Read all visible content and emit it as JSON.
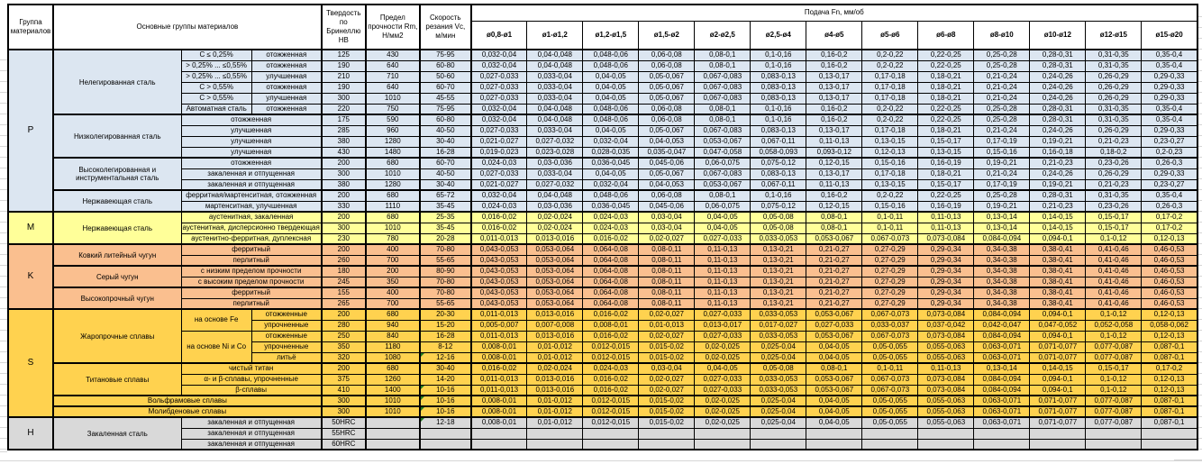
{
  "header": {
    "group_col": "Группа материалов",
    "main_col": "Основные группы материалов",
    "hb_col": "Твердость по Бринеллю HB",
    "rm_col": "Предел прочности Rm, Н/мм2",
    "vc_col": "Скорость резания Vc, м/мин",
    "feed_col": "Подача Fn, мм/об",
    "feed_sizes": [
      "ø0,8-ø1",
      "ø1-ø1,2",
      "ø1,2-ø1,5",
      "ø1,5-ø2",
      "ø2-ø2,5",
      "ø2,5-ø4",
      "ø4-ø5",
      "ø5-ø6",
      "ø6-ø8",
      "ø8-ø10",
      "ø10-ø12",
      "ø12-ø15",
      "ø15-ø20"
    ]
  },
  "flag_color": "#217a21",
  "groups": [
    {
      "label": "P",
      "rows": 15,
      "color": "#dce6f1"
    },
    {
      "label": "M",
      "rows": 3,
      "color": "#ffff99"
    },
    {
      "label": "K",
      "rows": 6,
      "color": "#fabf8f"
    },
    {
      "label": "S",
      "rows": 10,
      "color": "#ffd24f"
    },
    {
      "label": "H",
      "rows": 3,
      "color": "#d9d9d9"
    }
  ],
  "feed_patterns": {
    "A": [
      "0,032-0,04",
      "0,04-0,048",
      "0,048-0,06",
      "0,06-0,08",
      "0,08-0,1",
      "0,1-0,16",
      "0,16-0,2",
      "0,2-0,22",
      "0,22-0,25",
      "0,25-0,28",
      "0,28-0,31",
      "0,31-0,35",
      "0,35-0,4"
    ],
    "B": [
      "0,027-0,033",
      "0,033-0,04",
      "0,04-0,05",
      "0,05-0,067",
      "0,067-0,083",
      "0,083-0,13",
      "0,13-0,17",
      "0,17-0,18",
      "0,18-0,21",
      "0,21-0,24",
      "0,24-0,26",
      "0,26-0,29",
      "0,29-0,33"
    ],
    "C": [
      "0,021-0,027",
      "0,027-0,032",
      "0,032-0,04",
      "0,04-0,053",
      "0,053-0,067",
      "0,067-0,11",
      "0,11-0,13",
      "0,13-0,15",
      "0,15-0,17",
      "0,17-0,19",
      "0,19-0,21",
      "0,21-0,23",
      "0,23-0,27"
    ],
    "D": [
      "0,019-0,023",
      "0,023-0,028",
      "0,028-0,035",
      "0,035-0,047",
      "0,047-0,058",
      "0,058-0,093",
      "0,093-0,12",
      "0,12-0,13",
      "0,13-0,15",
      "0,15-0,16",
      "0,16-0,18",
      "0,18-0,2",
      "0,2-0,23"
    ],
    "E": [
      "0,024-0,03",
      "0,03-0,036",
      "0,036-0,045",
      "0,045-0,06",
      "0,06-0,075",
      "0,075-0,12",
      "0,12-0,15",
      "0,15-0,16",
      "0,16-0,19",
      "0,19-0,21",
      "0,21-0,23",
      "0,23-0,26",
      "0,26-0,3"
    ],
    "F": [
      "0,016-0,02",
      "0,02-0,024",
      "0,024-0,03",
      "0,03-0,04",
      "0,04-0,05",
      "0,05-0,08",
      "0,08-0,1",
      "0,1-0,11",
      "0,11-0,13",
      "0,13-0,14",
      "0,14-0,15",
      "0,15-0,17",
      "0,17-0,2"
    ],
    "G": [
      "0,011-0,013",
      "0,013-0,016",
      "0,016-0,02",
      "0,02-0,027",
      "0,027-0,033",
      "0,033-0,053",
      "0,053-0,067",
      "0,067-0,073",
      "0,073-0,084",
      "0,084-0,094",
      "0,094-0,1",
      "0,1-0,12",
      "0,12-0,13"
    ],
    "H": [
      "0,043-0,053",
      "0,053-0,064",
      "0,064-0,08",
      "0,08-0,11",
      "0,11-0,13",
      "0,13-0,21",
      "0,21-0,27",
      "0,27-0,29",
      "0,29-0,34",
      "0,34-0,38",
      "0,38-0,41",
      "0,41-0,46",
      "0,46-0,53"
    ],
    "I": [
      "0,005-0,007",
      "0,007-0,008",
      "0,008-0,01",
      "0,01-0,013",
      "0,013-0,017",
      "0,017-0,027",
      "0,027-0,033",
      "0,033-0,037",
      "0,037-0,042",
      "0,042-0,047",
      "0,047-0,052",
      "0,052-0,058",
      "0,058-0,062"
    ],
    "J": [
      "0,008-0,01",
      "0,01-0,012",
      "0,012-0,015",
      "0,015-0,02",
      "0,02-0,025",
      "0,025-0,04",
      "0,04-0,05",
      "0,05-0,055",
      "0,055-0,063",
      "0,063-0,071",
      "0,071-0,077",
      "0,077-0,087",
      "0,087-0,1"
    ]
  },
  "rows": [
    {
      "g": 0,
      "m": [
        [
          "Нелегированная сталь",
          6,
          1,
          1
        ],
        [
          "C ≤ 0,25%",
          1,
          1,
          0
        ],
        [
          "отожженная",
          1,
          1,
          0
        ]
      ],
      "hb": "125",
      "rm": "430",
      "vc": "75-95",
      "f": "A"
    },
    {
      "m": [
        [
          "> 0,25% ... ≤0,55%",
          1,
          1,
          0
        ],
        [
          "отожженная",
          1,
          1,
          0
        ]
      ],
      "hb": "190",
      "rm": "640",
      "vc": "60-80",
      "f": "A"
    },
    {
      "m": [
        [
          "> 0,25% ... ≤0,55%",
          1,
          1,
          0
        ],
        [
          "улучшенная",
          1,
          1,
          0
        ]
      ],
      "hb": "210",
      "rm": "710",
      "vc": "50-60",
      "f": "B"
    },
    {
      "m": [
        [
          "C > 0,55%",
          1,
          1,
          0
        ],
        [
          "отожженная",
          1,
          1,
          0
        ]
      ],
      "hb": "190",
      "rm": "640",
      "vc": "60-70",
      "f": "B"
    },
    {
      "m": [
        [
          "C > 0,55%",
          1,
          1,
          0
        ],
        [
          "улучшенная",
          1,
          1,
          0
        ]
      ],
      "hb": "300",
      "rm": "1010",
      "vc": "45-55",
      "f": "B"
    },
    {
      "m": [
        [
          "Автоматная сталь",
          1,
          1,
          0
        ],
        [
          "отожженная",
          1,
          1,
          0
        ]
      ],
      "hb": "220",
      "rm": "750",
      "vc": "75-95",
      "f": "A",
      "sb": 1
    },
    {
      "m": [
        [
          "Низколегированная сталь",
          4,
          1,
          1
        ],
        [
          "отожженная",
          1,
          2,
          0
        ]
      ],
      "hb": "175",
      "rm": "590",
      "vc": "60-80",
      "f": "A"
    },
    {
      "m": [
        [
          "улучшенная",
          1,
          2,
          0
        ]
      ],
      "hb": "285",
      "rm": "960",
      "vc": "40-50",
      "f": "B"
    },
    {
      "m": [
        [
          "улучшенная",
          1,
          2,
          0
        ]
      ],
      "hb": "380",
      "rm": "1280",
      "vc": "30-40",
      "f": "C"
    },
    {
      "m": [
        [
          "улучшенная",
          1,
          2,
          0
        ]
      ],
      "hb": "430",
      "rm": "1480",
      "vc": "16-28",
      "f": "D",
      "sb": 1
    },
    {
      "m": [
        [
          "Высоколегированная и инструментальная сталь",
          3,
          1,
          1
        ],
        [
          "отожженная",
          1,
          2,
          0
        ]
      ],
      "hb": "200",
      "rm": "680",
      "vc": "60-70",
      "f": "E"
    },
    {
      "m": [
        [
          "закаленная и отпущенная",
          1,
          2,
          0
        ]
      ],
      "hb": "300",
      "rm": "1010",
      "vc": "40-50",
      "f": "B"
    },
    {
      "m": [
        [
          "закаленная и отпущенная",
          1,
          2,
          0
        ]
      ],
      "hb": "380",
      "rm": "1280",
      "vc": "30-40",
      "f": "C",
      "sb": 1
    },
    {
      "m": [
        [
          "Нержавеющая сталь",
          2,
          1,
          1
        ],
        [
          "ферритная/мартенситная, отожженная",
          1,
          2,
          0
        ]
      ],
      "hb": "200",
      "rm": "680",
      "vc": "65-72",
      "f": "A"
    },
    {
      "m": [
        [
          "мартенситная, улучшенная",
          1,
          2,
          0
        ]
      ],
      "hb": "330",
      "rm": "1110",
      "vc": "35-45",
      "f": "E",
      "sb": 1
    },
    {
      "g": 1,
      "m": [
        [
          "Нержавеющая сталь",
          3,
          1,
          1
        ],
        [
          "аустенитная, закаленная",
          1,
          2,
          0
        ]
      ],
      "hb": "200",
      "rm": "680",
      "vc": "25-35",
      "f": "F"
    },
    {
      "m": [
        [
          "аустенитная, дисперсионно твердеющая",
          1,
          2,
          0
        ]
      ],
      "hb": "300",
      "rm": "1010",
      "vc": "35-45",
      "f": "F"
    },
    {
      "m": [
        [
          "аустенитно-ферритная, дуплексная",
          1,
          2,
          0
        ]
      ],
      "hb": "230",
      "rm": "780",
      "vc": "20-28",
      "f": "G",
      "sb": 1
    },
    {
      "g": 2,
      "m": [
        [
          "Ковкий литейный чугун",
          2,
          1,
          1
        ],
        [
          "ферритный",
          1,
          2,
          0
        ]
      ],
      "hb": "200",
      "rm": "400",
      "vc": "70-80",
      "f": "H"
    },
    {
      "m": [
        [
          "перлитный",
          1,
          2,
          0
        ]
      ],
      "hb": "260",
      "rm": "700",
      "vc": "55-65",
      "f": "H",
      "sb": 1
    },
    {
      "m": [
        [
          "Серый чугун",
          2,
          1,
          1
        ],
        [
          "с низким пределом прочности",
          1,
          2,
          0
        ]
      ],
      "hb": "180",
      "rm": "200",
      "vc": "80-90",
      "f": "H"
    },
    {
      "m": [
        [
          "с высоким пределом прочности",
          1,
          2,
          0
        ]
      ],
      "hb": "245",
      "rm": "350",
      "vc": "70-80",
      "f": "H",
      "sb": 1
    },
    {
      "m": [
        [
          "Высокопрочный чугун",
          2,
          1,
          1
        ],
        [
          "ферритный",
          1,
          2,
          0
        ]
      ],
      "hb": "155",
      "rm": "400",
      "vc": "70-80",
      "f": "H"
    },
    {
      "m": [
        [
          "перлитный",
          1,
          2,
          0
        ]
      ],
      "hb": "265",
      "rm": "700",
      "vc": "55-65",
      "f": "H",
      "sb": 1
    },
    {
      "g": 3,
      "m": [
        [
          "Жаропрочные сплавы",
          5,
          1,
          1
        ],
        [
          "на основе Fe",
          2,
          1,
          0
        ],
        [
          "отожженные",
          1,
          1,
          0
        ]
      ],
      "hb": "200",
      "rm": "680",
      "vc": "20-30",
      "f": "G"
    },
    {
      "m": [
        [
          "упрочненные",
          1,
          1,
          0
        ]
      ],
      "hb": "280",
      "rm": "940",
      "vc": "15-20",
      "f": "I"
    },
    {
      "m": [
        [
          "на основе Ni и Co",
          3,
          1,
          0
        ],
        [
          "отожженные",
          1,
          1,
          0
        ]
      ],
      "hb": "250",
      "rm": "840",
      "vc": "16-28",
      "f": "G"
    },
    {
      "m": [
        [
          "упрочненные",
          1,
          1,
          0
        ]
      ],
      "hb": "350",
      "rm": "1180",
      "vc": "8-12",
      "f": "J"
    },
    {
      "m": [
        [
          "литьё",
          1,
          1,
          0
        ]
      ],
      "hb": "320",
      "rm": "1080",
      "vc": "12-16",
      "vf": 1,
      "f": "J",
      "sb": 1
    },
    {
      "m": [
        [
          "Титановые сплавы",
          3,
          1,
          1
        ],
        [
          "чистый титан",
          1,
          2,
          0
        ]
      ],
      "hb": "200",
      "rm": "680",
      "vc": "30-40",
      "f": "F"
    },
    {
      "m": [
        [
          "α- и β-сплавы, упрочненные",
          1,
          2,
          0
        ]
      ],
      "hb": "375",
      "rm": "1260",
      "vc": "14-20",
      "f": "G"
    },
    {
      "m": [
        [
          "β-сплавы",
          1,
          2,
          0
        ]
      ],
      "hb": "410",
      "rm": "1400",
      "vc": "10-16",
      "vf": 1,
      "f": "G",
      "sb": 1
    },
    {
      "m": [
        [
          "Вольфрамовые сплавы",
          1,
          3,
          0
        ]
      ],
      "hb": "300",
      "rm": "1010",
      "vc": "10-16",
      "vf": 1,
      "f": "J",
      "sb": 1
    },
    {
      "m": [
        [
          "Молибденовые сплавы",
          1,
          3,
          0
        ]
      ],
      "hb": "300",
      "rm": "1010",
      "vc": "10-16",
      "vf": 1,
      "f": "J",
      "sb": 1
    },
    {
      "g": 4,
      "m": [
        [
          "Закаленная сталь",
          3,
          1,
          1
        ],
        [
          "закаленная и отпущенная",
          1,
          2,
          0
        ]
      ],
      "hb": "50HRC",
      "rm": "",
      "vc": "12-18",
      "vf": 1,
      "f": "J"
    },
    {
      "m": [
        [
          "закаленная и отпущенная",
          1,
          2,
          0
        ]
      ],
      "hb": "55HRC",
      "rm": "",
      "vc": "",
      "f": ""
    },
    {
      "m": [
        [
          "закаленная и отпущенная",
          1,
          2,
          0
        ]
      ],
      "hb": "60HRC",
      "rm": "",
      "vc": "",
      "f": ""
    }
  ]
}
